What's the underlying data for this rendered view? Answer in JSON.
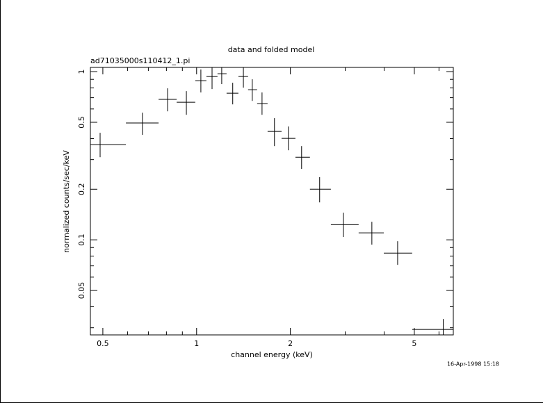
{
  "chart_data": {
    "type": "scatter",
    "title": "data and folded model",
    "subtitle": "ad71035000s110412_1.pi",
    "x_label": "channel energy (keV)",
    "y_label": "normalized counts/sec/keV",
    "annotation": "16-Apr-1998 15:18",
    "color": "#000000",
    "log_x": true,
    "log_y": true,
    "x": [
      0.49,
      0.67,
      0.807,
      0.927,
      1.032,
      1.121,
      1.204,
      1.306,
      1.413,
      1.509,
      1.622,
      1.778,
      1.971,
      2.173,
      2.483,
      2.96,
      3.653,
      4.42,
      6.19
    ],
    "x_min": [
      0.456,
      0.593,
      0.755,
      0.863,
      0.99,
      1.075,
      1.167,
      1.248,
      1.362,
      1.463,
      1.564,
      1.69,
      1.874,
      2.076,
      2.311,
      2.698,
      3.313,
      3.99,
      4.921
    ],
    "x_max": [
      0.593,
      0.755,
      0.863,
      0.99,
      1.075,
      1.167,
      1.248,
      1.362,
      1.463,
      1.564,
      1.69,
      1.874,
      2.076,
      2.311,
      2.698,
      3.313,
      3.99,
      4.921,
      6.67
    ],
    "values": [
      0.368,
      0.495,
      0.684,
      0.658,
      0.884,
      0.936,
      0.972,
      0.745,
      0.936,
      0.781,
      0.645,
      0.441,
      0.401,
      0.31,
      0.2,
      0.123,
      0.11,
      0.0834,
      0.0293
    ],
    "y_min": [
      0.31,
      0.421,
      0.581,
      0.554,
      0.752,
      0.788,
      0.843,
      0.639,
      0.803,
      0.67,
      0.554,
      0.361,
      0.341,
      0.264,
      0.167,
      0.104,
      0.0936,
      0.071,
      0.0272
    ],
    "y_max": [
      0.433,
      0.57,
      0.796,
      0.766,
      1.03,
      1.08,
      1.059,
      0.859,
      1.069,
      0.901,
      0.752,
      0.529,
      0.472,
      0.361,
      0.236,
      0.145,
      0.128,
      0.0981,
      0.0338
    ],
    "xlim": [
      0.456,
      6.67
    ],
    "ylim": [
      0.0272,
      1.06
    ],
    "xticks": [
      0.5,
      1,
      2,
      5
    ],
    "yticks": [
      0.05,
      0.1,
      0.2,
      0.5,
      1
    ],
    "xticks_minor": [
      0.6,
      0.7,
      0.8,
      0.9,
      3,
      4,
      6
    ],
    "yticks_minor": [
      0.03,
      0.04,
      0.06,
      0.07,
      0.08,
      0.09,
      0.3,
      0.4,
      0.6,
      0.7,
      0.8,
      0.9
    ]
  }
}
